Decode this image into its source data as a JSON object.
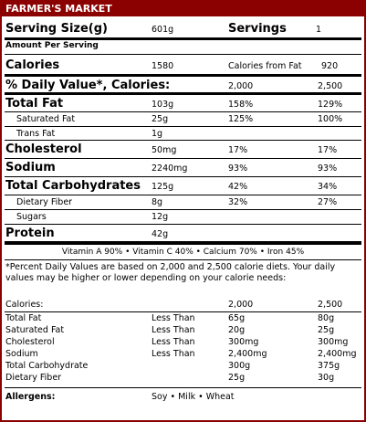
{
  "header": {
    "title": "FARMER'S MARKET"
  },
  "serving": {
    "size_label": "Serving Size(g)",
    "size_value": "601g",
    "servings_label": "Servings",
    "servings_value": "1"
  },
  "amount_per_serving": "Amount Per Serving",
  "calories": {
    "label": "Calories",
    "value": "1580",
    "from_fat_label": "Calories from Fat",
    "from_fat_value": "920"
  },
  "dv_header": {
    "label": "% Daily Value*, Calories:",
    "col1": "2,000",
    "col2": "2,500"
  },
  "nutrients": [
    {
      "name": "Total Fat",
      "amount": "103g",
      "dv1": "158%",
      "dv2": "129%"
    },
    {
      "name": "Saturated Fat",
      "amount": "25g",
      "dv1": "125%",
      "dv2": "100%"
    },
    {
      "name": "Trans Fat",
      "amount": "1g",
      "dv1": "",
      "dv2": ""
    },
    {
      "name": "Cholesterol",
      "amount": "50mg",
      "dv1": "17%",
      "dv2": "17%"
    },
    {
      "name": "Sodium",
      "amount": "2240mg",
      "dv1": "93%",
      "dv2": "93%"
    },
    {
      "name": "Total Carbohydrates",
      "amount": "125g",
      "dv1": "42%",
      "dv2": "34%"
    },
    {
      "name": "Dietary Fiber",
      "amount": "8g",
      "dv1": "32%",
      "dv2": "27%"
    },
    {
      "name": "Sugars",
      "amount": "12g",
      "dv1": "",
      "dv2": ""
    },
    {
      "name": "Protein",
      "amount": "42g",
      "dv1": "",
      "dv2": ""
    }
  ],
  "vitamins": "Vitamin A  90% • Vitamin C  40% •  Calcium 70% • Iron 45%",
  "footnote": "*Percent Daily Values are based on 2,000 and 2,500 calorie diets. Your daily values may be higher or lower depending on your calorie needs:",
  "ref_table": {
    "header": {
      "label": "Calories:",
      "col1": "2,000",
      "col2": "2,500"
    },
    "rows": [
      {
        "name": "Total Fat",
        "cond": "Less Than",
        "v1": "65g",
        "v2": "80g"
      },
      {
        "name": "Saturated Fat",
        "cond": "Less Than",
        "v1": "20g",
        "v2": "25g"
      },
      {
        "name": "Cholesterol",
        "cond": "Less Than",
        "v1": "300mg",
        "v2": "300mg"
      },
      {
        "name": "Sodium",
        "cond": "Less Than",
        "v1": "2,400mg",
        "v2": "2,400mg"
      },
      {
        "name": "Total Carbohydrate",
        "cond": "",
        "v1": "300g",
        "v2": "375g"
      },
      {
        "name": "Dietary Fiber",
        "cond": "",
        "v1": "25g",
        "v2": "30g"
      }
    ]
  },
  "allergens": {
    "label": "Allergens:",
    "value": "Soy • Milk • Wheat"
  },
  "colors": {
    "accent": "#8b0000"
  }
}
